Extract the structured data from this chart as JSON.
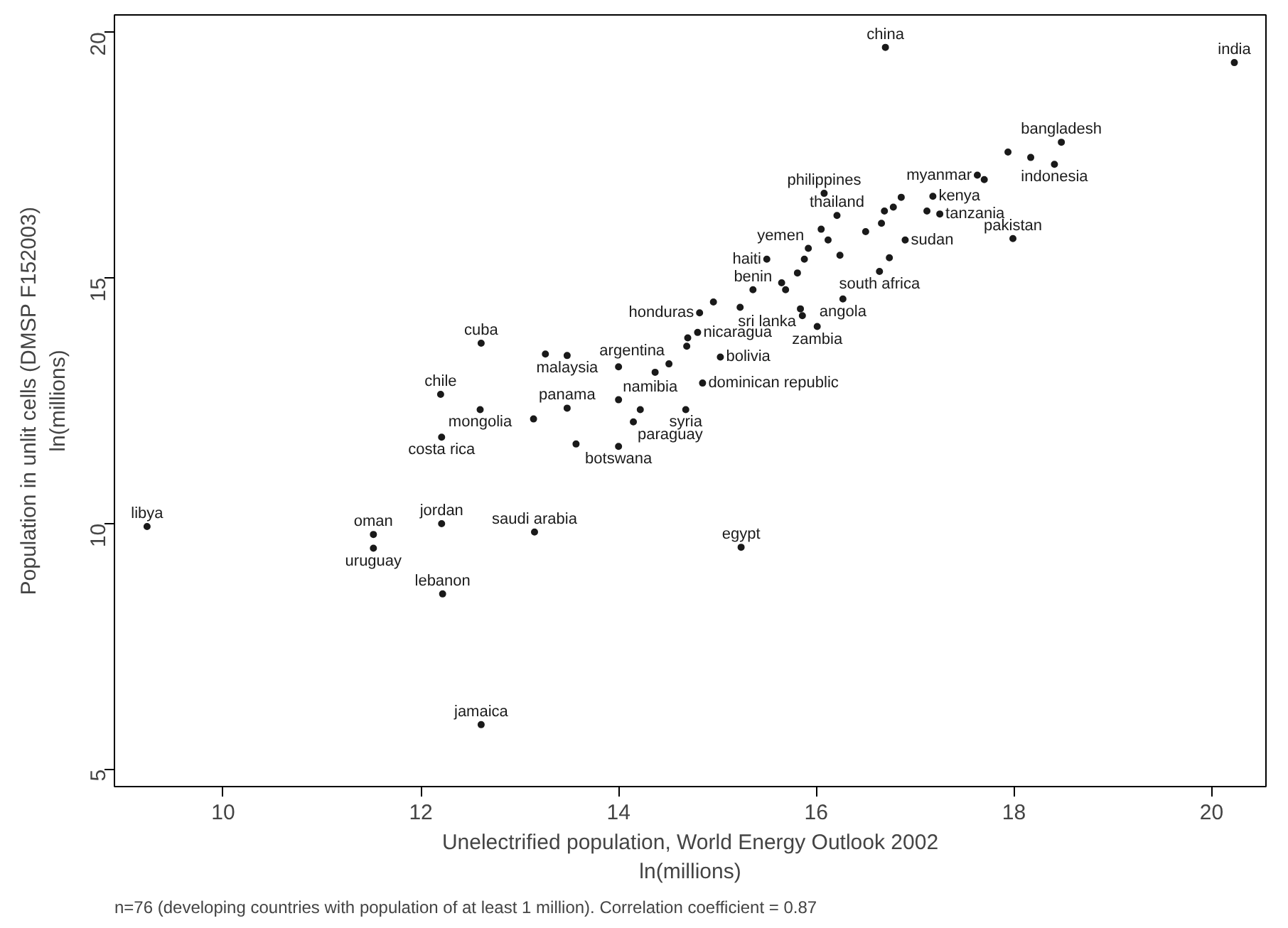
{
  "chart_data": {
    "type": "scatter",
    "marker": "circle",
    "grid": false,
    "xlabel": "Unelectrified population, World Energy Outlook 2002\nln(millions)",
    "ylabel": "Population in unlit cells (DMSP F152003)\nln(millions)",
    "xlim": [
      8.9,
      20.55
    ],
    "ylim": [
      4.65,
      20.35
    ],
    "xticks": [
      10,
      12,
      14,
      16,
      18,
      20
    ],
    "yticks": [
      5,
      10,
      15,
      20
    ],
    "annotations": [
      "n=76 (developing countries with population of at least 1 million). Correlation coefficient = 0.87"
    ],
    "series": [
      {
        "color": "#1a1a1a",
        "x": [
          16.7,
          20.23,
          18.48,
          17.94,
          18.17,
          18.41,
          17.63,
          17.7,
          17.99,
          16.08,
          16.86,
          17.18,
          16.78,
          16.69,
          17.12,
          17.25,
          16.21,
          16.66,
          16.05,
          16.5,
          16.9,
          16.12,
          15.92,
          15.5,
          15.88,
          16.24,
          16.74,
          16.64,
          15.81,
          15.65,
          15.36,
          15.69,
          16.27,
          14.96,
          15.23,
          14.82,
          15.84,
          15.86,
          16.01,
          14.8,
          14.7,
          14.69,
          15.03,
          12.61,
          13.26,
          13.48,
          14.0,
          14.51,
          14.37,
          14.85,
          12.2,
          12.6,
          13.14,
          13.48,
          14.0,
          14.22,
          14.68,
          14.15,
          12.21,
          13.57,
          14.0,
          9.23,
          11.52,
          11.52,
          12.21,
          13.15,
          15.24,
          12.22,
          12.61
        ],
        "values": [
          19.69,
          19.38,
          17.76,
          17.56,
          17.45,
          17.31,
          17.09,
          17.0,
          15.8,
          16.72,
          16.64,
          16.66,
          16.44,
          16.36,
          16.36,
          16.3,
          16.27,
          16.11,
          15.99,
          15.94,
          15.77,
          15.77,
          15.6,
          15.38,
          15.38,
          15.46,
          15.41,
          15.13,
          15.1,
          14.9,
          14.76,
          14.76,
          14.57,
          14.51,
          14.4,
          14.29,
          14.37,
          14.23,
          14.01,
          13.89,
          13.78,
          13.61,
          13.39,
          13.67,
          13.45,
          13.42,
          13.19,
          13.25,
          13.08,
          12.86,
          12.63,
          12.32,
          12.13,
          12.35,
          12.52,
          12.32,
          12.32,
          12.07,
          11.76,
          11.62,
          11.57,
          9.94,
          9.78,
          9.5,
          10.0,
          9.83,
          9.52,
          8.57,
          5.91
        ],
        "value_labels": [
          "china",
          "india",
          "bangladesh",
          null,
          null,
          "indonesia",
          "myanmar",
          null,
          "pakistan",
          "philippines",
          null,
          "kenya",
          null,
          null,
          null,
          "tanzania",
          "thailand",
          null,
          null,
          null,
          "sudan",
          null,
          "yemen",
          "haiti",
          null,
          null,
          null,
          "south africa",
          null,
          null,
          "benin",
          null,
          "angola",
          null,
          null,
          "honduras",
          "sri lanka",
          null,
          "zambia",
          "nicaragua",
          null,
          null,
          "bolivia",
          "cuba",
          null,
          "malaysia",
          null,
          "argentina",
          null,
          "dominican republic",
          "chile",
          "mongolia",
          null,
          "panama",
          "namibia",
          null,
          "syria",
          "paraguay",
          "costa rica",
          null,
          "botswana",
          "libya",
          "oman",
          "uruguay",
          "jordan",
          "saudi arabia",
          "egypt",
          "lebanon",
          "jamaica"
        ]
      }
    ]
  }
}
